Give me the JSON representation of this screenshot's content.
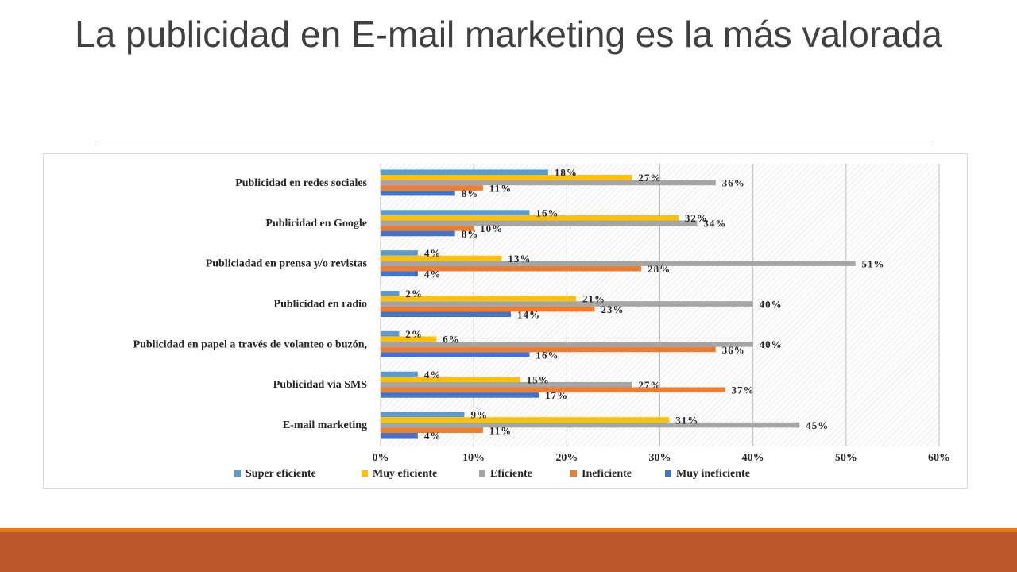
{
  "slide": {
    "title": "La publicidad en E-mail marketing es la más valorada"
  },
  "colors": {
    "background": "#ffffff",
    "title": "#404040",
    "footer_band": "#bc582a",
    "footer_line": "#e07a1f"
  },
  "chart_data": {
    "type": "bar",
    "orientation": "horizontal",
    "title": "",
    "xlabel": "",
    "ylabel": "",
    "xlim": [
      0,
      60
    ],
    "x_ticks": [
      "0%",
      "10%",
      "20%",
      "30%",
      "40%",
      "50%",
      "60%"
    ],
    "grid": true,
    "legend_position": "bottom",
    "categories": [
      "Publicidad en redes sociales",
      "Publicidad en Google",
      "Publiciadad en prensa  y/o revistas",
      "Publicidad en radio",
      "Publicidad en papel a través de volanteo o buzón,",
      "Publicidad via SMS",
      "E-mail marketing"
    ],
    "series": [
      {
        "name": "Super eficiente",
        "color": "#5b9bd5",
        "values": [
          18,
          16,
          4,
          2,
          2,
          4,
          9
        ],
        "labels": [
          "18%",
          "16%",
          "4%",
          "2%",
          "2%",
          "4%",
          "9%"
        ]
      },
      {
        "name": "Muy eficiente",
        "color": "#ffc000",
        "values": [
          27,
          32,
          13,
          21,
          6,
          15,
          31
        ],
        "labels": [
          "27%",
          "32%",
          "13%",
          "21%",
          "6%",
          "15%",
          "31%"
        ]
      },
      {
        "name": "Eficiente",
        "color": "#a5a5a5",
        "values": [
          36,
          34,
          51,
          40,
          40,
          27,
          45
        ],
        "labels": [
          "36%",
          "34%",
          "51%",
          "40%",
          "40%",
          "27%",
          "45%"
        ]
      },
      {
        "name": "Ineficiente",
        "color": "#ed7d31",
        "values": [
          11,
          10,
          28,
          23,
          36,
          37,
          11
        ],
        "labels": [
          "11%",
          "10%",
          "28%",
          "23%",
          "36%",
          "37%",
          "11%"
        ]
      },
      {
        "name": "Muy ineficiente",
        "color": "#4472c4",
        "values": [
          8,
          8,
          4,
          14,
          16,
          17,
          4
        ],
        "labels": [
          "8%",
          "8%",
          "4%",
          "14%",
          "16%",
          "17%",
          "4%"
        ]
      }
    ]
  }
}
